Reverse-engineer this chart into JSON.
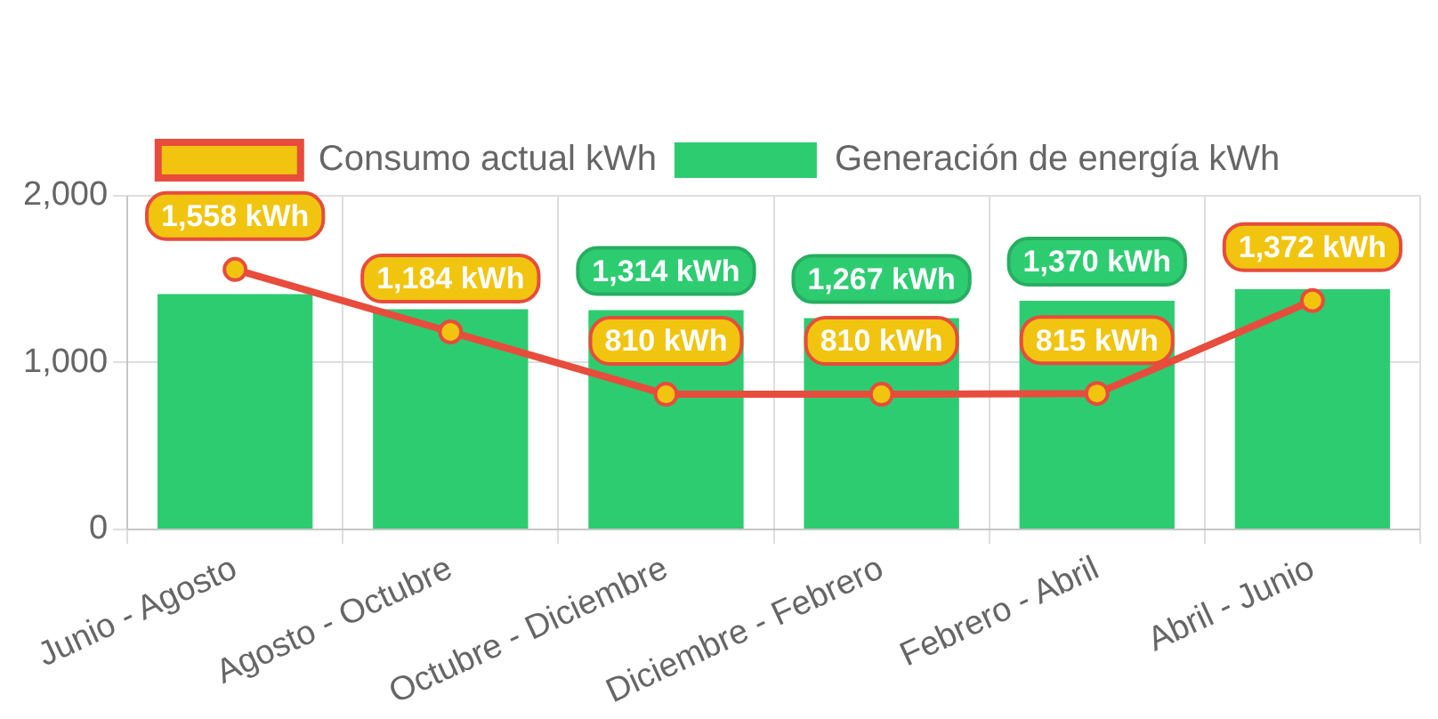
{
  "chart_data": {
    "type": "bar",
    "categories": [
      "Junio - Agosto",
      "Agosto - Octubre",
      "Octubre - Diciembre",
      "Diciembre - Febrero",
      "Febrero - Abril",
      "Abril - Junio"
    ],
    "series": [
      {
        "name": "Consumo actual kWh",
        "type": "line",
        "color": "#e74c3c",
        "values": [
          1558,
          1184,
          810,
          810,
          815,
          1372
        ],
        "value_labels": [
          "1,558 kWh",
          "1,184 kWh",
          "810 kWh",
          "810 kWh",
          "815 kWh",
          "1,372 kWh"
        ]
      },
      {
        "name": "Generación de energía kWh",
        "color": "#2ecc71",
        "values": [
          1410,
          1320,
          1314,
          1267,
          1370,
          1440
        ],
        "value_labels": [
          null,
          null,
          "1,314 kWh",
          "1,267 kWh",
          "1,370 kWh",
          null
        ]
      }
    ],
    "ylim": [
      0,
      2000
    ],
    "yticks": [
      {
        "value": 0,
        "label": "0"
      },
      {
        "value": 1000,
        "label": "1,000"
      },
      {
        "value": 2000,
        "label": "2,000"
      }
    ],
    "grid": true,
    "legend": "top",
    "marker": "circle"
  }
}
